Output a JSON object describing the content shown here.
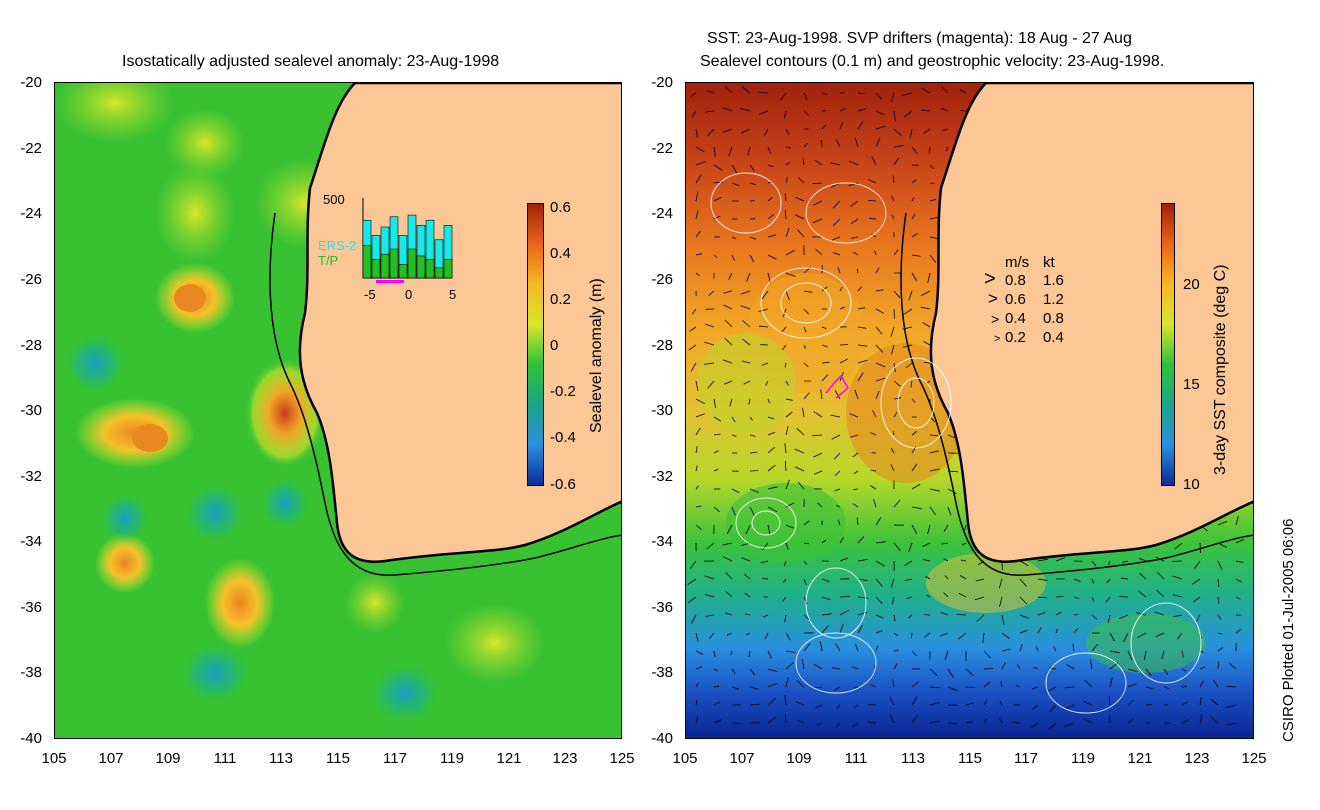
{
  "left_panel": {
    "title": "Isostatically adjusted sealevel anomaly: 23-Aug-1998",
    "y_ticks": [
      "-20",
      "-22",
      "-24",
      "-26",
      "-28",
      "-30",
      "-32",
      "-34",
      "-36",
      "-38",
      "-40"
    ],
    "x_ticks": [
      "105",
      "107",
      "109",
      "111",
      "113",
      "115",
      "117",
      "119",
      "121",
      "123",
      "125"
    ],
    "colorbar": {
      "label": "Sealevel anomaly (m)",
      "ticks": [
        "0.6",
        "0.4",
        "0.2",
        "0",
        "-0.2",
        "-0.4",
        "-0.6"
      ],
      "colors": [
        "#a0220c",
        "#e8641a",
        "#f5b826",
        "#d8e62a",
        "#2cc23a",
        "#1aa68a",
        "#2a8fe0",
        "#0a2d9a"
      ]
    },
    "inset": {
      "top_label": "500",
      "series_labels": [
        "ERS-2",
        "T/P"
      ],
      "series_colors": [
        "#1ae8e8",
        "#22c022"
      ],
      "x_ticks": [
        "-5",
        "0",
        "5"
      ],
      "ers2_values": [
        0.68,
        0.5,
        0.6,
        0.72,
        0.5,
        0.74,
        0.62,
        0.68,
        0.45,
        0.62
      ],
      "tp_values": [
        0.38,
        0.22,
        0.28,
        0.34,
        0.16,
        0.34,
        0.26,
        0.22,
        0.12,
        0.22
      ]
    }
  },
  "right_panel": {
    "title_line1": "SST: 23-Aug-1998. SVP drifters (magenta): 18 Aug - 27 Aug",
    "title_line2": "Sealevel contours (0.1 m) and geostrophic velocity: 23-Aug-1998.",
    "y_ticks": [
      "-20",
      "-22",
      "-24",
      "-26",
      "-28",
      "-30",
      "-32",
      "-34",
      "-36",
      "-38",
      "-40"
    ],
    "x_ticks": [
      "105",
      "107",
      "109",
      "111",
      "113",
      "115",
      "117",
      "119",
      "121",
      "123",
      "125"
    ],
    "colorbar": {
      "label": "3-day SST composite (deg C)",
      "ticks": [
        "20",
        "15",
        "10"
      ],
      "colors": [
        "#a0220c",
        "#e8641a",
        "#f5b826",
        "#d8e62a",
        "#2cc23a",
        "#1aa68a",
        "#2a8fe0",
        "#0a2d9a"
      ]
    },
    "velocity_legend": {
      "header_ms": "m/s",
      "header_kt": "kt",
      "rows": [
        {
          "ms": "0.8",
          "kt": "1.6"
        },
        {
          "ms": "0.6",
          "kt": "1.2"
        },
        {
          "ms": "0.4",
          "kt": "0.8"
        },
        {
          "ms": "0.2",
          "kt": "0.4"
        }
      ]
    }
  },
  "credit": "CSIRO Plotted 01-Jul-2005 06:06",
  "colors": {
    "land": "#fcc797",
    "coast": "#000000",
    "drifter": "#ff00ff"
  }
}
